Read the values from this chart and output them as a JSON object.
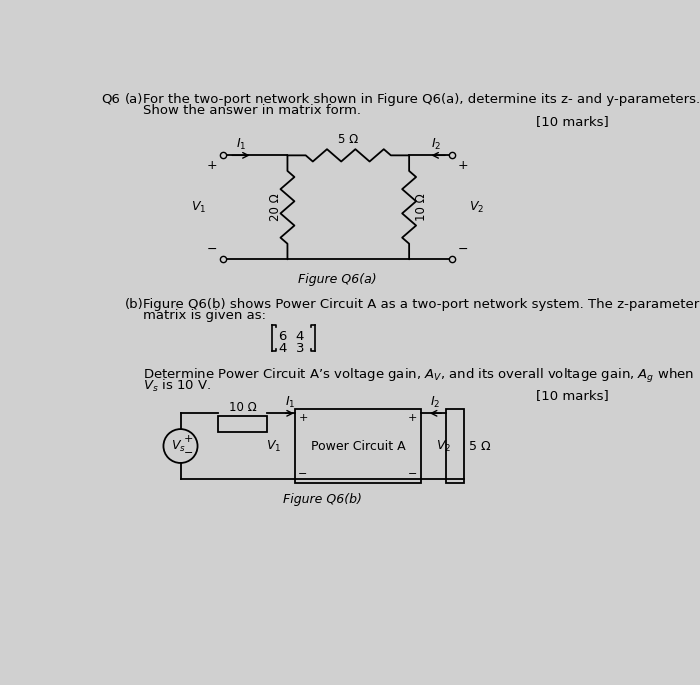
{
  "bg_color": "#d8d8d8",
  "fig_bg": "#f0f0f0",
  "text_color": "#000000",
  "part_a_text1": "For the two-port network shown in Figure Q6(a), determine its z- and y-parameters.",
  "part_a_text2": "Show the answer in matrix form.",
  "marks_a": "[10 marks]",
  "fig_a_caption": "Figure Q6(a)",
  "part_b_text1": "Figure Q6(b) shows Power Circuit A as a two-port network system. The z-parameter",
  "part_b_text2": "matrix is given as:",
  "part_b_text3": "Determine Power Circuit A’s voltage gain, $A_V$, and its overall voltage gain, $A_g$ when",
  "part_b_text4": "$V_s$ is 10 V.",
  "marks_b": "[10 marks]",
  "fig_b_caption": "Figure Q6(b)",
  "lw": 1.3,
  "fs_main": 9.5,
  "fs_label": 9.0,
  "fs_small": 8.5
}
